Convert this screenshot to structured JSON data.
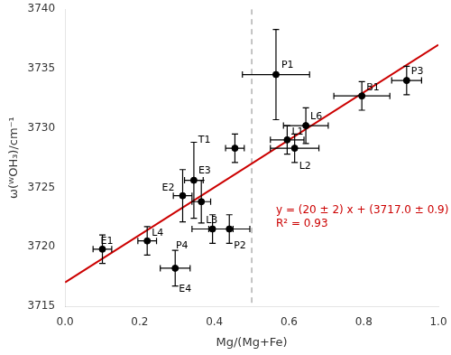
{
  "chart_data": {
    "type": "scatter",
    "x_label": "Mg/(Mg+Fe)",
    "y_label": "ω(ᵂOH₃)/cm⁻¹",
    "series": [
      {
        "type": "scatter",
        "marker": "circle",
        "color": "#000000",
        "point_labels": [
          "E1",
          "L4",
          "E4",
          "E2",
          "E3",
          "L3",
          "P4",
          "P2",
          "T1",
          "P1",
          "L1",
          "L2",
          "L6",
          "B1",
          "P3"
        ],
        "x": [
          0.1,
          0.22,
          0.295,
          0.315,
          0.345,
          0.365,
          0.395,
          0.44,
          0.455,
          0.565,
          0.595,
          0.615,
          0.645,
          0.795,
          0.915
        ],
        "values": [
          3719.8,
          3720.5,
          3718.2,
          3724.3,
          3725.6,
          3723.8,
          3721.5,
          3721.5,
          3728.3,
          3734.5,
          3729.0,
          3728.3,
          3730.2,
          3732.7,
          3734.0
        ],
        "xerr": [
          0.025,
          0.025,
          0.04,
          0.025,
          0.025,
          0.025,
          0.055,
          0.055,
          0.025,
          0.09,
          0.045,
          0.065,
          0.06,
          0.075,
          0.04
        ],
        "yerr": [
          1.2,
          1.2,
          1.5,
          2.2,
          3.2,
          1.8,
          1.2,
          1.2,
          1.2,
          3.8,
          1.2,
          1.2,
          1.5,
          1.2,
          1.2
        ]
      },
      {
        "type": "line",
        "color": "#cc0000",
        "line_style": "solid",
        "x": [
          0.0,
          1.0
        ],
        "values": [
          3717.0,
          3737.0
        ]
      }
    ],
    "vline": {
      "x": 0.5,
      "color": "#888888",
      "line_style": "dashed"
    },
    "annotations": [
      {
        "text": "y = (20 ± 2) x + (3717.0 ± 0.9)\nR² = 0.93",
        "x": 0.565,
        "y": 3723.5,
        "color": "#cc0000"
      }
    ],
    "xlim": [
      0.0,
      1.0
    ],
    "ylim": [
      3715,
      3740
    ],
    "xticks": [
      {
        "value": 0.0,
        "label": "0.0"
      },
      0.2,
      0.4,
      0.6,
      0.8,
      {
        "value": 1.0,
        "label": "1.0"
      }
    ],
    "yticks": [
      3715,
      3720,
      3725,
      3730,
      3735,
      3740
    ],
    "grid": false
  }
}
